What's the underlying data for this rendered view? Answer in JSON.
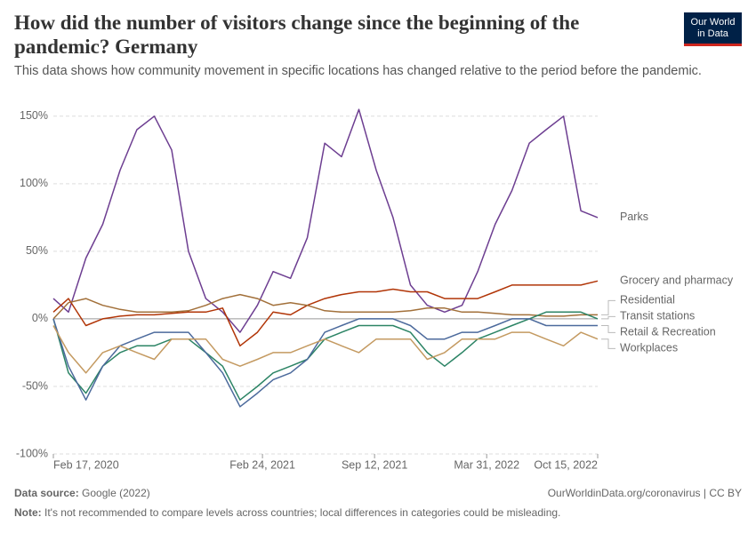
{
  "chart_data": {
    "type": "line",
    "title": "How did the number of visitors change since the beginning of the pandemic? Germany",
    "subtitle": "This data shows how community movement in specific locations has changed relative to the period before the pandemic.",
    "logo": [
      "Our World",
      "in Data"
    ],
    "source_label": "Data source:",
    "source": "Google (2022)",
    "url": "OurWorldinData.org/coronavirus | CC BY",
    "note_label": "Note:",
    "note": "It's not recommended to compare levels across countries; local differences in categories could be misleading.",
    "x": [
      "2020-02-17",
      "2020-03-15",
      "2020-04-15",
      "2020-05-15",
      "2020-06-15",
      "2020-07-15",
      "2020-08-15",
      "2020-09-15",
      "2020-10-15",
      "2020-11-15",
      "2020-12-15",
      "2021-01-15",
      "2021-02-15",
      "2021-03-15",
      "2021-04-15",
      "2021-05-15",
      "2021-06-15",
      "2021-07-15",
      "2021-08-15",
      "2021-09-15",
      "2021-10-15",
      "2021-11-15",
      "2021-12-15",
      "2022-01-15",
      "2022-02-15",
      "2022-03-15",
      "2022-04-15",
      "2022-05-15",
      "2022-06-15",
      "2022-07-15",
      "2022-08-15",
      "2022-09-15",
      "2022-10-15"
    ],
    "xlim": [
      "2020-02-17",
      "2022-10-15"
    ],
    "xticks": [
      {
        "value": "2020-02-17",
        "label": "Feb 17, 2020"
      },
      {
        "value": "2021-02-24",
        "label": "Feb 24, 2021"
      },
      {
        "value": "2021-09-12",
        "label": "Sep 12, 2021"
      },
      {
        "value": "2022-03-31",
        "label": "Mar 31, 2022"
      },
      {
        "value": "2022-10-15",
        "label": "Oct 15, 2022"
      }
    ],
    "ylim": [
      -100,
      165
    ],
    "yticks": [
      {
        "value": -100,
        "label": "-100%"
      },
      {
        "value": -50,
        "label": "-50%"
      },
      {
        "value": 0,
        "label": "0%"
      },
      {
        "value": 50,
        "label": "50%"
      },
      {
        "value": 100,
        "label": "100%"
      },
      {
        "value": 150,
        "label": "150%"
      }
    ],
    "grid": true,
    "series": [
      {
        "name": "Parks",
        "color": "#6d3e91",
        "values": [
          15,
          5,
          45,
          70,
          110,
          140,
          150,
          125,
          50,
          15,
          5,
          -10,
          10,
          35,
          30,
          60,
          130,
          120,
          155,
          110,
          75,
          25,
          10,
          5,
          10,
          35,
          70,
          95,
          130,
          140,
          150,
          80,
          75
        ]
      },
      {
        "name": "Grocery and pharmacy",
        "color": "#b13507",
        "values": [
          5,
          15,
          -5,
          0,
          2,
          3,
          3,
          4,
          5,
          5,
          8,
          -20,
          -10,
          5,
          3,
          10,
          15,
          18,
          20,
          20,
          22,
          20,
          20,
          15,
          15,
          15,
          20,
          25,
          25,
          25,
          25,
          25,
          28
        ]
      },
      {
        "name": "Residential",
        "color": "#a2703a",
        "values": [
          0,
          12,
          15,
          10,
          7,
          5,
          5,
          5,
          6,
          10,
          15,
          18,
          15,
          10,
          12,
          10,
          6,
          5,
          5,
          5,
          5,
          6,
          8,
          8,
          5,
          5,
          4,
          3,
          3,
          2,
          2,
          3,
          3
        ]
      },
      {
        "name": "Transit stations",
        "color": "#2c8465",
        "values": [
          0,
          -40,
          -55,
          -35,
          -25,
          -20,
          -20,
          -15,
          -15,
          -25,
          -35,
          -60,
          -50,
          -40,
          -35,
          -30,
          -15,
          -10,
          -5,
          -5,
          -5,
          -10,
          -25,
          -35,
          -25,
          -15,
          -10,
          -5,
          0,
          5,
          5,
          5,
          0
        ]
      },
      {
        "name": "Retail & Recreation",
        "color": "#4c6a9c",
        "values": [
          0,
          -35,
          -60,
          -35,
          -20,
          -15,
          -10,
          -10,
          -10,
          -25,
          -40,
          -65,
          -55,
          -45,
          -40,
          -30,
          -10,
          -5,
          0,
          0,
          0,
          -5,
          -15,
          -15,
          -10,
          -10,
          -5,
          0,
          0,
          -5,
          -5,
          -5,
          -5
        ]
      },
      {
        "name": "Workplaces",
        "color": "#c49a61",
        "values": [
          -5,
          -25,
          -40,
          -25,
          -20,
          -25,
          -30,
          -15,
          -15,
          -15,
          -30,
          -35,
          -30,
          -25,
          -25,
          -20,
          -15,
          -20,
          -25,
          -15,
          -15,
          -15,
          -30,
          -25,
          -15,
          -15,
          -15,
          -10,
          -10,
          -15,
          -20,
          -10,
          -15
        ]
      }
    ]
  }
}
